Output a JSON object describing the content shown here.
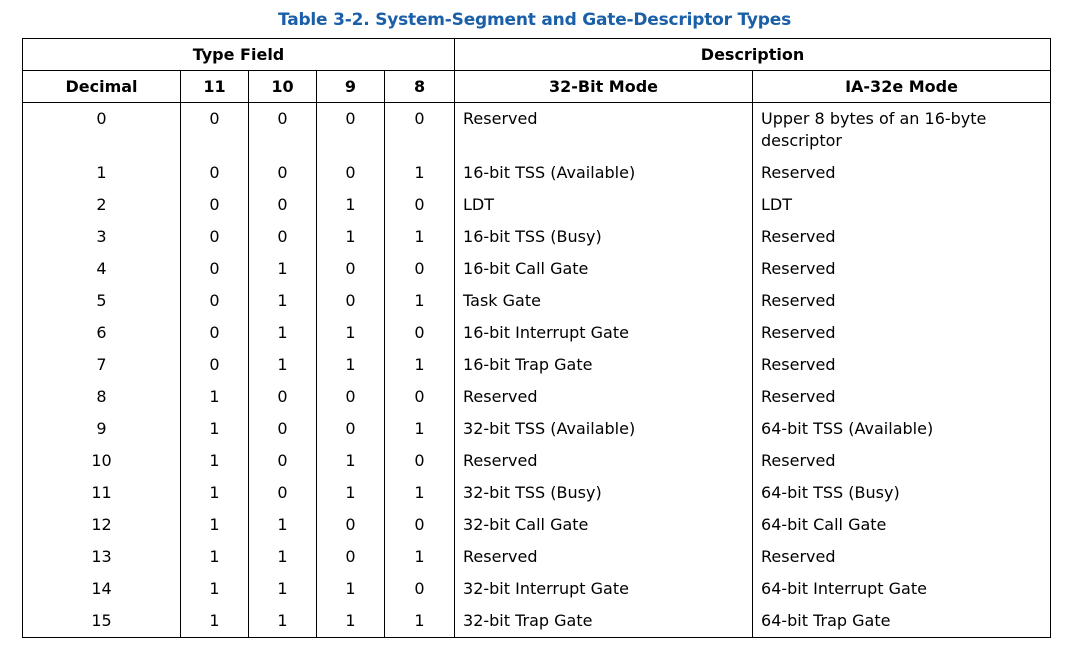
{
  "caption": "Table 3-2.  System-Segment and Gate-Descriptor Types",
  "accent_color": "#1a5fa8",
  "header": {
    "type_field": "Type Field",
    "description": "Description",
    "decimal": "Decimal",
    "bit11": "11",
    "bit10": "10",
    "bit9": "9",
    "bit8": "8",
    "mode32": "32-Bit Mode",
    "mode64": "IA-32e Mode"
  },
  "rows": [
    {
      "dec": "0",
      "b11": "0",
      "b10": "0",
      "b9": "0",
      "b8": "0",
      "m32": "Reserved",
      "m64": "Upper 8 bytes of an 16-byte descriptor"
    },
    {
      "dec": "1",
      "b11": "0",
      "b10": "0",
      "b9": "0",
      "b8": "1",
      "m32": "16-bit TSS (Available)",
      "m64": "Reserved"
    },
    {
      "dec": "2",
      "b11": "0",
      "b10": "0",
      "b9": "1",
      "b8": "0",
      "m32": "LDT",
      "m64": "LDT"
    },
    {
      "dec": "3",
      "b11": "0",
      "b10": "0",
      "b9": "1",
      "b8": "1",
      "m32": "16-bit TSS (Busy)",
      "m64": "Reserved"
    },
    {
      "dec": "4",
      "b11": "0",
      "b10": "1",
      "b9": "0",
      "b8": "0",
      "m32": "16-bit Call Gate",
      "m64": "Reserved"
    },
    {
      "dec": "5",
      "b11": "0",
      "b10": "1",
      "b9": "0",
      "b8": "1",
      "m32": "Task Gate",
      "m64": "Reserved"
    },
    {
      "dec": "6",
      "b11": "0",
      "b10": "1",
      "b9": "1",
      "b8": "0",
      "m32": "16-bit Interrupt Gate",
      "m64": "Reserved"
    },
    {
      "dec": "7",
      "b11": "0",
      "b10": "1",
      "b9": "1",
      "b8": "1",
      "m32": "16-bit Trap Gate",
      "m64": "Reserved"
    },
    {
      "dec": "8",
      "b11": "1",
      "b10": "0",
      "b9": "0",
      "b8": "0",
      "m32": "Reserved",
      "m64": "Reserved"
    },
    {
      "dec": "9",
      "b11": "1",
      "b10": "0",
      "b9": "0",
      "b8": "1",
      "m32": "32-bit TSS (Available)",
      "m64": "64-bit TSS (Available)"
    },
    {
      "dec": "10",
      "b11": "1",
      "b10": "0",
      "b9": "1",
      "b8": "0",
      "m32": "Reserved",
      "m64": "Reserved"
    },
    {
      "dec": "11",
      "b11": "1",
      "b10": "0",
      "b9": "1",
      "b8": "1",
      "m32": "32-bit TSS (Busy)",
      "m64": "64-bit TSS (Busy)"
    },
    {
      "dec": "12",
      "b11": "1",
      "b10": "1",
      "b9": "0",
      "b8": "0",
      "m32": "32-bit Call Gate",
      "m64": "64-bit Call Gate"
    },
    {
      "dec": "13",
      "b11": "1",
      "b10": "1",
      "b9": "0",
      "b8": "1",
      "m32": "Reserved",
      "m64": "Reserved"
    },
    {
      "dec": "14",
      "b11": "1",
      "b10": "1",
      "b9": "1",
      "b8": "0",
      "m32": "32-bit Interrupt Gate",
      "m64": "64-bit Interrupt Gate"
    },
    {
      "dec": "15",
      "b11": "1",
      "b10": "1",
      "b9": "1",
      "b8": "1",
      "m32": "32-bit Trap Gate",
      "m64": "64-bit Trap Gate"
    }
  ]
}
